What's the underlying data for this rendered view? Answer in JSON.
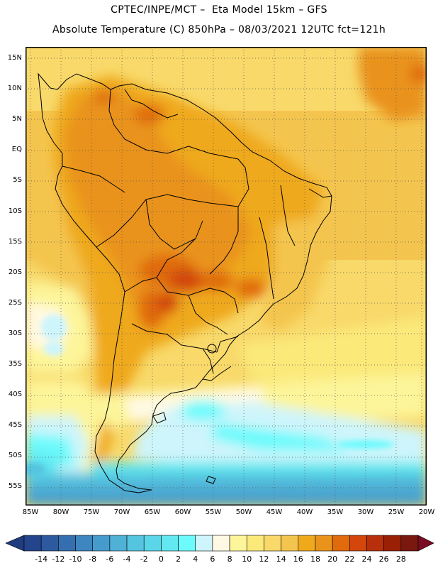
{
  "header": {
    "line1": "CPTEC/INPE/MCT –  Eta Model 15km – GFS",
    "line2": "Absolute Temperature (C) 850hPa – 08/03/2021 12UTC fct=121h"
  },
  "map": {
    "lat_labels": [
      "15N",
      "10N",
      "5N",
      "EQ",
      "5S",
      "10S",
      "15S",
      "20S",
      "25S",
      "30S",
      "35S",
      "40S",
      "45S",
      "50S",
      "55S"
    ],
    "lon_labels": [
      "85W",
      "80W",
      "75W",
      "70W",
      "65W",
      "60W",
      "55W",
      "50W",
      "45W",
      "40W",
      "35W",
      "30W",
      "25W",
      "20W"
    ],
    "gridlines": "dotted",
    "field_note": "warmest 22-24C over Paraguay/Bolivia lowlands; coolest near Drake Passage"
  },
  "colorbar": {
    "tick_labels": [
      "-14",
      "-12",
      "-10",
      "-8",
      "-6",
      "-4",
      "-2",
      "0",
      "2",
      "4",
      "6",
      "8",
      "10",
      "12",
      "14",
      "16",
      "18",
      "20",
      "22",
      "24",
      "26",
      "28"
    ],
    "colors": [
      "#24458c",
      "#2d5a9e",
      "#356fb0",
      "#3d86bf",
      "#459ccc",
      "#4fb1d6",
      "#55c4df",
      "#5ad6e8",
      "#61e8f0",
      "#6cfafc",
      "#cdf5fb",
      "#fff9e4",
      "#fdf59a",
      "#fbe97a",
      "#f8d96a",
      "#f4c54e",
      "#efa91c",
      "#e9931d",
      "#e06a0c",
      "#d3460c",
      "#b8300b",
      "#992005",
      "#7a1810"
    ],
    "under_color": "#1f3c80",
    "over_color": "#7a0c24"
  }
}
